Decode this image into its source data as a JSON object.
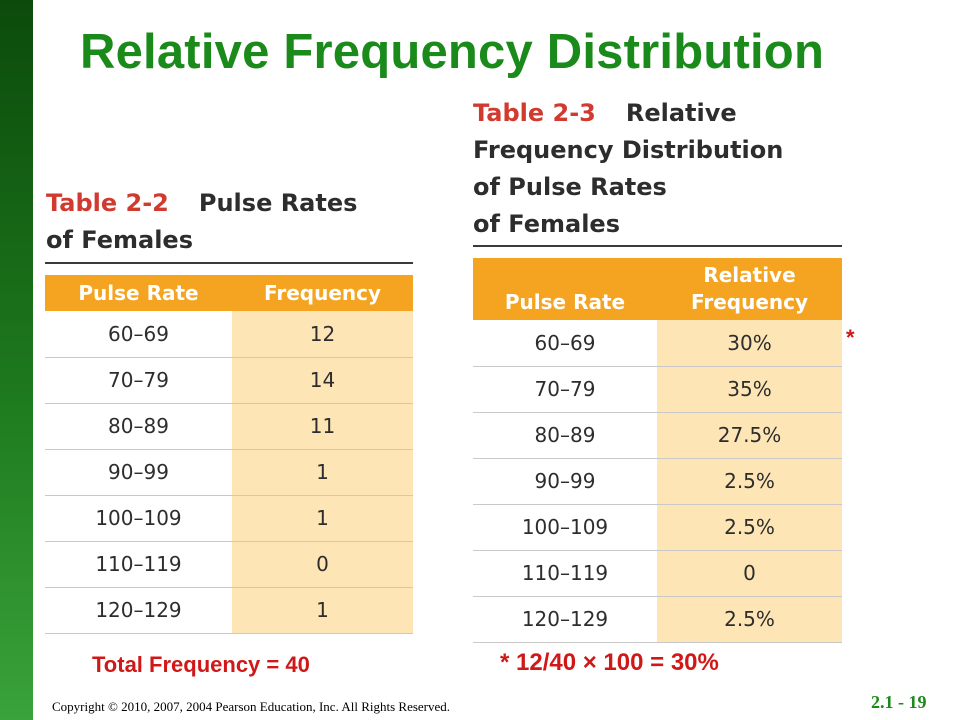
{
  "slide": {
    "title": "Relative Frequency Distribution",
    "copyright": "Copyright © 2010, 2007, 2004 Pearson Education, Inc. All Rights Reserved.",
    "slide_number": "2.1 - 19"
  },
  "table_2_2": {
    "number": "Table 2-2",
    "title_line1": "Pulse Rates",
    "title_line2": "of Females",
    "headers": [
      "Pulse Rate",
      "Frequency"
    ],
    "rows": [
      [
        "60–69",
        "12"
      ],
      [
        "70–79",
        "14"
      ],
      [
        "80–89",
        "11"
      ],
      [
        "90–99",
        "1"
      ],
      [
        "100–109",
        "1"
      ],
      [
        "110–119",
        "0"
      ],
      [
        "120–129",
        "1"
      ]
    ]
  },
  "table_2_3": {
    "number": "Table 2-3",
    "title_line1": "Relative",
    "title_line2": "Frequency Distribution",
    "title_line3": "of Pulse Rates",
    "title_line4": "of Females",
    "headers": [
      "Pulse Rate",
      "Relative",
      "Frequency"
    ],
    "rows": [
      [
        "60–69",
        "30%"
      ],
      [
        "70–79",
        "35%"
      ],
      [
        "80–89",
        "27.5%"
      ],
      [
        "90–99",
        "2.5%"
      ],
      [
        "100–109",
        "2.5%"
      ],
      [
        "110–119",
        "0"
      ],
      [
        "120–129",
        "2.5%"
      ]
    ]
  },
  "annotations": {
    "asterisk": "*",
    "total_frequency": "Total Frequency = 40",
    "calculation": "* 12/40 × 100 = 30%"
  },
  "colors": {
    "title_green": "#1a8a1a",
    "header_orange": "#f4a420",
    "cell_shade": "#fde5b5",
    "table_number_red": "#d13a2f",
    "annotation_red": "#d01818"
  }
}
